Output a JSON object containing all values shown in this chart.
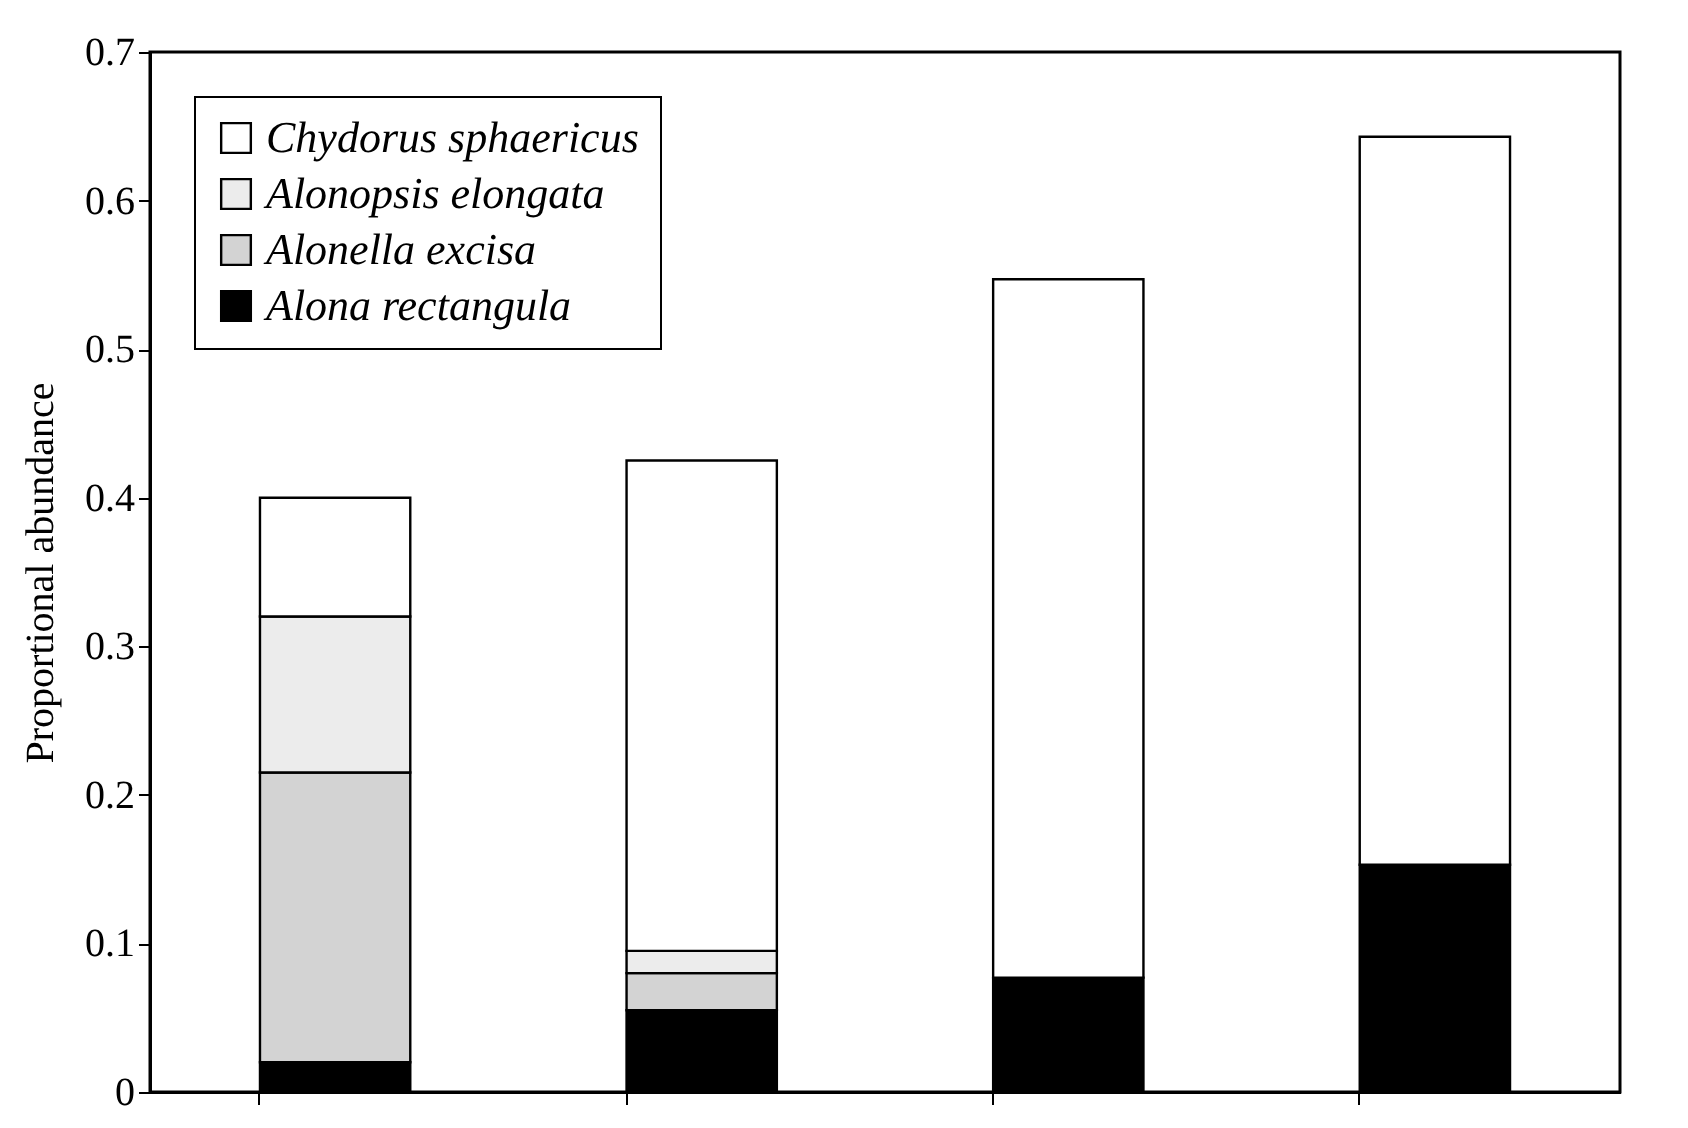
{
  "chart_data": {
    "type": "bar",
    "stacked": true,
    "ylabel": "Proportional abundance",
    "categories": [
      null,
      null,
      null,
      null
    ],
    "series": [
      {
        "name": "Alona rectangula",
        "color": "#000000",
        "values": [
          0.02,
          0.055,
          0.077,
          0.153
        ]
      },
      {
        "name": "Alonella excisa",
        "color": "#d3d3d3",
        "values": [
          0.195,
          0.025,
          0,
          0
        ]
      },
      {
        "name": "Alonopsis elongata",
        "color": "#ececec",
        "values": [
          0.105,
          0.015,
          0,
          0
        ]
      },
      {
        "name": "Chydorus sphaericus",
        "color": "#ffffff",
        "values": [
          0.08,
          0.33,
          0.47,
          0.49
        ]
      }
    ],
    "ylim": [
      0,
      0.7
    ],
    "yticks": [
      0,
      0.1,
      0.2,
      0.3,
      0.4,
      0.5,
      0.6,
      0.7
    ],
    "legend": "top left",
    "grid": false
  }
}
